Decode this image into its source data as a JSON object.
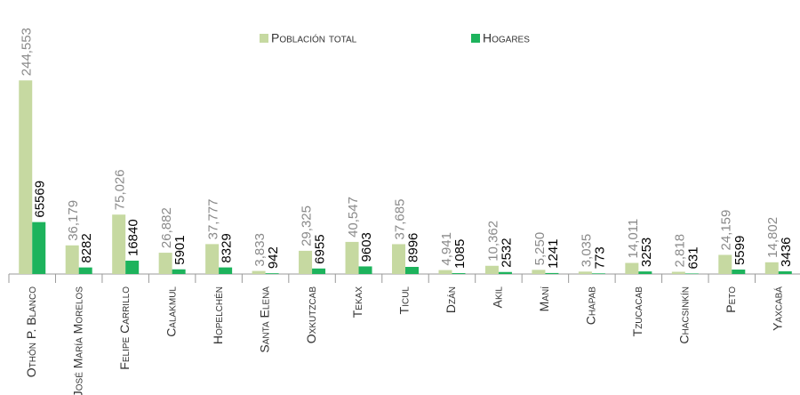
{
  "chart_data": {
    "type": "bar",
    "categories": [
      "Othón P. Blanco",
      "José María Morelos",
      "Felipe Carrillo",
      "Calakmul",
      "Hopelchén",
      "Santa Elena",
      "Oxkutzcab",
      "Tekax",
      "Ticul",
      "Dzán",
      "Akil",
      "Maní",
      "Chapab",
      "Tzucacab",
      "Chacsinkín",
      "Peto",
      "Yaxcabá"
    ],
    "series": [
      {
        "name": "Población total",
        "color": "#c6d9a1",
        "values": [
          244553,
          36179,
          75026,
          26882,
          37777,
          3833,
          29325,
          40547,
          37685,
          4941,
          10362,
          5250,
          3035,
          14011,
          2818,
          24159,
          14802
        ],
        "value_labels": [
          "244,553",
          "36,179",
          "75,026",
          "26,882",
          "37,777",
          "3,833",
          "29,325",
          "40,547",
          "37,685",
          "4,941",
          "10,362",
          "5,250",
          "3,035",
          "14,011",
          "2,818",
          "24,159",
          "14,802"
        ]
      },
      {
        "name": "Hogares",
        "color": "#1db35c",
        "values": [
          65569,
          8282,
          16840,
          5901,
          8329,
          942,
          6955,
          9603,
          8996,
          1085,
          2532,
          1241,
          773,
          3253,
          631,
          5599,
          3436
        ]
      }
    ],
    "ylim": [
      0,
      300000
    ],
    "legend": "top"
  }
}
